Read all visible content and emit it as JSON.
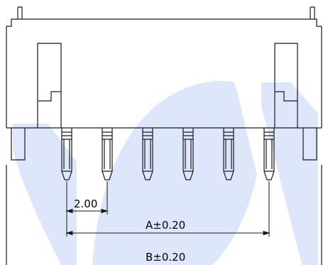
{
  "dimensions": {
    "pitch": "2.00",
    "dim_a": "A±0.20",
    "dim_b": "B±0.20"
  },
  "pin_count": 6,
  "colors": {
    "line": "#1a1a1a",
    "watermark": "#dde6fb"
  }
}
